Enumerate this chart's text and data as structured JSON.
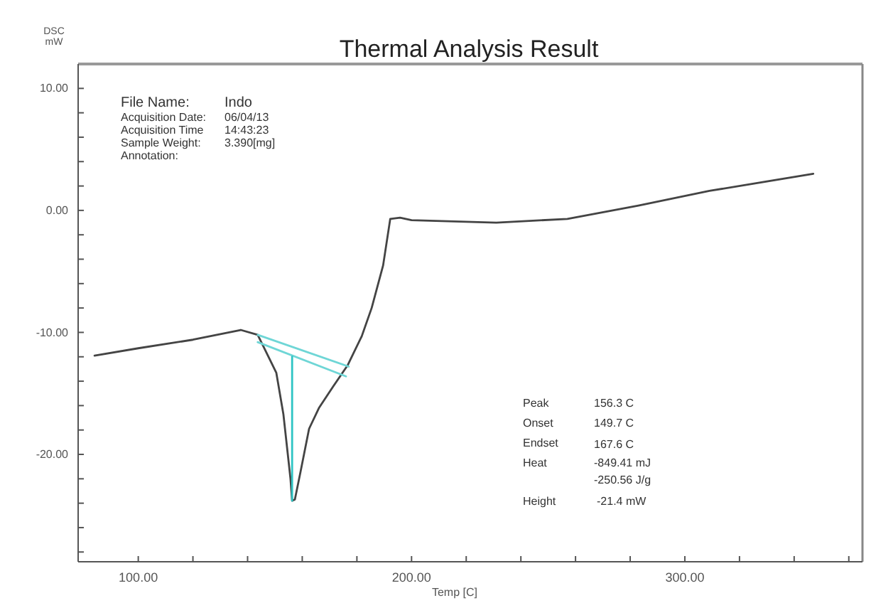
{
  "chart_data": {
    "type": "line",
    "title": "Thermal Analysis Result",
    "xlabel": "Temp [C]",
    "ylabel": "DSC\nmW",
    "xlim": [
      78,
      365
    ],
    "ylim": [
      -28.8,
      12
    ],
    "xticks": [
      {
        "value": 100,
        "label": "100.00"
      },
      {
        "value": 120,
        "label": null
      },
      {
        "value": 140,
        "label": null
      },
      {
        "value": 160,
        "label": null
      },
      {
        "value": 180,
        "label": null
      },
      {
        "value": 200,
        "label": "200.00"
      },
      {
        "value": 220,
        "label": null
      },
      {
        "value": 240,
        "label": null
      },
      {
        "value": 260,
        "label": null
      },
      {
        "value": 280,
        "label": null
      },
      {
        "value": 300,
        "label": "300.00"
      },
      {
        "value": 320,
        "label": null
      },
      {
        "value": 340,
        "label": null
      },
      {
        "value": 360,
        "label": null
      }
    ],
    "yticks": [
      {
        "value": 10,
        "label": "10.00"
      },
      {
        "value": 8,
        "label": null
      },
      {
        "value": 6,
        "label": null
      },
      {
        "value": 4,
        "label": null
      },
      {
        "value": 2,
        "label": null
      },
      {
        "value": 0,
        "label": "0.00"
      },
      {
        "value": -2,
        "label": null
      },
      {
        "value": -4,
        "label": null
      },
      {
        "value": -6,
        "label": null
      },
      {
        "value": -8,
        "label": null
      },
      {
        "value": -10,
        "label": "-10.00"
      },
      {
        "value": -12,
        "label": null
      },
      {
        "value": -14,
        "label": null
      },
      {
        "value": -16,
        "label": null
      },
      {
        "value": -18,
        "label": null
      },
      {
        "value": -20,
        "label": "-20.00"
      },
      {
        "value": -22,
        "label": null
      },
      {
        "value": -24,
        "label": null
      },
      {
        "value": -26,
        "label": null
      },
      {
        "value": -28,
        "label": null
      }
    ],
    "grid": false,
    "marker": "none",
    "line_style": "solid",
    "series": [
      {
        "color": "#444444",
        "x": [
          84,
          100,
          120,
          137.5,
          143.7,
          150.5,
          153.1,
          155.7,
          156.3,
          157.3,
          159.4,
          162.5,
          166.1,
          171.4,
          176.6,
          181.8,
          185.4,
          189.6,
          192.2,
          195.8,
          200,
          231,
          257,
          283,
          309,
          347
        ],
        "values": [
          -11.9,
          -11.3,
          -10.6,
          -9.8,
          -10.2,
          -13.3,
          -16.7,
          -22.0,
          -23.8,
          -23.7,
          -21.4,
          -17.9,
          -16.2,
          -14.4,
          -12.7,
          -10.3,
          -8.0,
          -4.5,
          -0.7,
          -0.6,
          -0.8,
          -1.0,
          -0.7,
          0.4,
          1.6,
          3.0
        ]
      },
      {
        "color": "#6fd6d6",
        "x": [
          143.7,
          177
        ],
        "values": [
          -10.2,
          -12.8
        ]
      },
      {
        "color": "#6fd6d6",
        "x": [
          143.7,
          176
        ],
        "values": [
          -10.8,
          -13.6
        ]
      },
      {
        "color": "#2fc4c4",
        "x": [
          156.3,
          156.3
        ],
        "values": [
          -23.8,
          -12.0
        ]
      }
    ],
    "annotations": [
      "File Name:",
      "Indo",
      "Acquisition Date:",
      "06/04/13",
      "Acquisition Time",
      "14:43:23",
      "Sample Weight:",
      "3.390[mg]",
      "Annotation:",
      "Peak",
      "156.3 C",
      "Onset",
      "149.7 C",
      "Endset",
      "167.6 C",
      "Heat",
      "-849.41 mJ",
      "-250.56 J/g",
      "Height",
      "-21.4 mW"
    ]
  }
}
